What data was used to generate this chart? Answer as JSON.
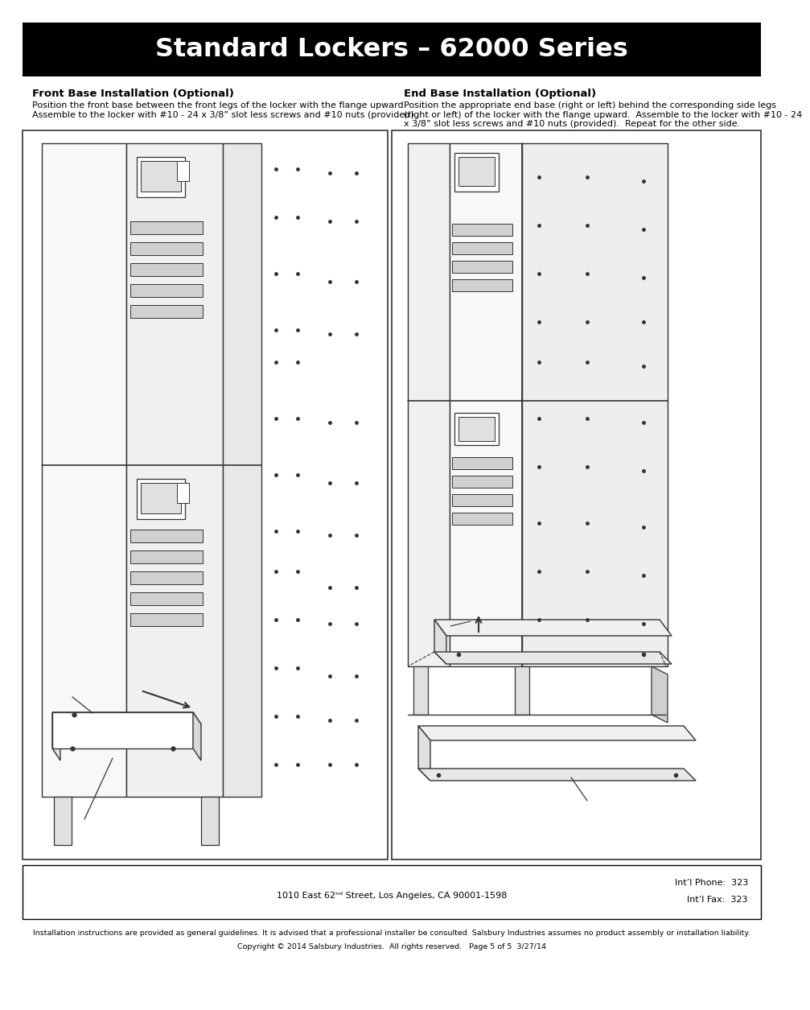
{
  "title": "Standard Lockers – 62000 Series",
  "title_bg": "#000000",
  "title_color": "#ffffff",
  "title_fontsize": 23,
  "page_bg": "#ffffff",
  "left_section_title": "Front Base Installation (Optional)",
  "right_section_title": "End Base Installation (Optional)",
  "left_body_text": "Position the front base between the front legs of the locker with the flange upward.\nAssemble to the locker with #10 - 24 x 3/8” slot less screws and #10 nuts (provided).",
  "right_body_text": "Position the appropriate end base (right or left) behind the corresponding side legs\n(right or left) of the locker with the flange upward.  Assemble to the locker with #10 - 24\nx 3/8” slot less screws and #10 nuts (provided).  Repeat for the other side.",
  "footer_address": "1010 East 62ⁿᵈ Street, Los Angeles, CA 90001-1598",
  "footer_phone": "Int’l Phone:  323",
  "footer_fax": "Int’l Fax:  323",
  "footer_legal1": "Installation instructions are provided as general guidelines. It is advised that a professional installer be consulted. Salsbury Industries assumes no product assembly or installation liability.",
  "footer_legal2": "Copyright © 2014 Salsbury Industries.  All rights reserved.   Page 5 of 5  3/27/14",
  "border_color": "#000000",
  "text_color": "#000000",
  "body_fontsize": 8,
  "section_title_fontsize": 9.5,
  "footer_fontsize": 6.8,
  "diagram_color": "#333333",
  "diagram_lw": 1.0
}
